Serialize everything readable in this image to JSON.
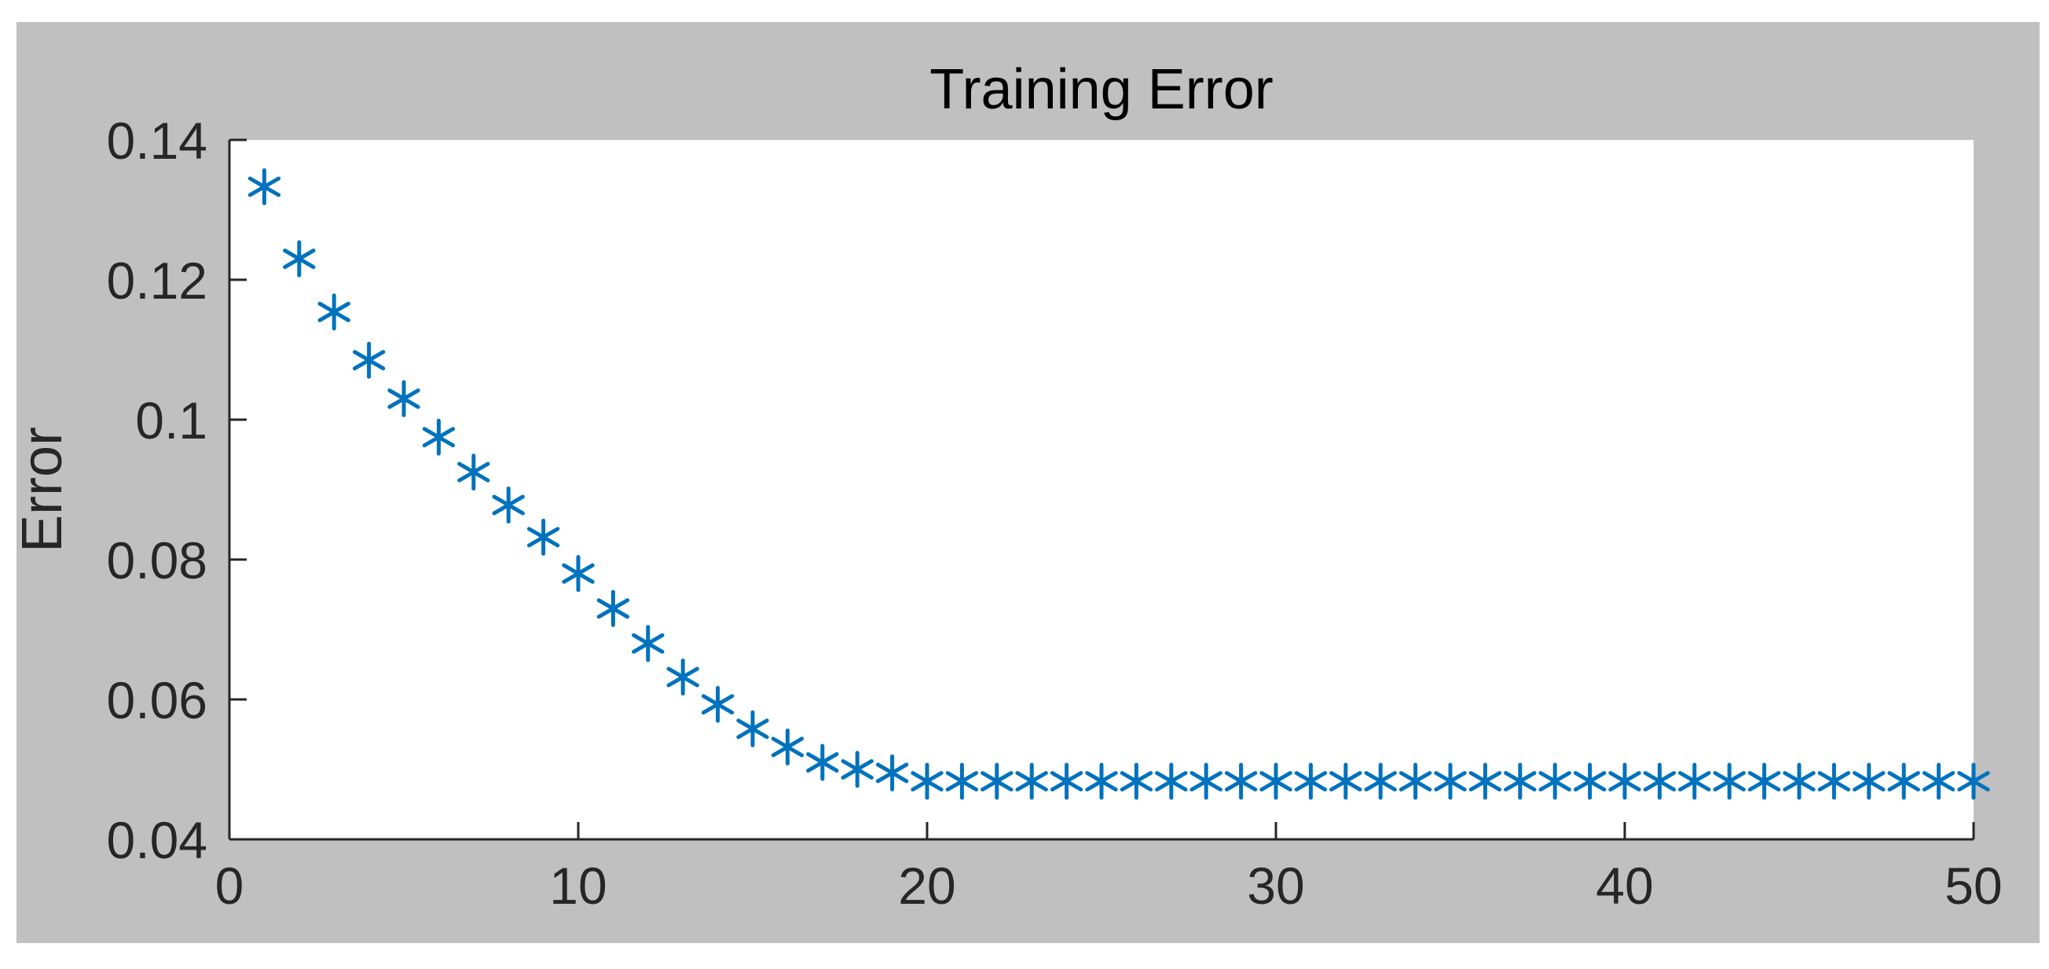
{
  "chart_data": {
    "type": "scatter",
    "title": "Training Error",
    "xlabel": "",
    "ylabel": "Error",
    "xlim": [
      0,
      50
    ],
    "ylim": [
      0.04,
      0.14
    ],
    "xticks": [
      0,
      10,
      20,
      30,
      40,
      50
    ],
    "xtick_labels": [
      "0",
      "10",
      "20",
      "30",
      "40",
      "50"
    ],
    "yticks": [
      0.04,
      0.06,
      0.08,
      0.1,
      0.12,
      0.14
    ],
    "ytick_labels": [
      "0.04",
      "0.06",
      "0.08",
      "0.1",
      "0.12",
      "0.14"
    ],
    "grid": false,
    "marker": "asterisk",
    "series": [
      {
        "color": "#0072BD",
        "x": [
          1,
          2,
          3,
          4,
          5,
          6,
          7,
          8,
          9,
          10,
          11,
          12,
          13,
          14,
          15,
          16,
          17,
          18,
          19,
          20,
          21,
          22,
          23,
          24,
          25,
          26,
          27,
          28,
          29,
          30,
          31,
          32,
          33,
          34,
          35,
          36,
          37,
          38,
          39,
          40,
          41,
          42,
          43,
          44,
          45,
          46,
          47,
          48,
          49,
          50
        ],
        "y": [
          0.1333,
          0.123,
          0.1154,
          0.1085,
          0.103,
          0.0975,
          0.0925,
          0.0878,
          0.0832,
          0.078,
          0.073,
          0.068,
          0.0632,
          0.0593,
          0.0558,
          0.0532,
          0.051,
          0.05,
          0.0495,
          0.0483,
          0.0483,
          0.0483,
          0.0483,
          0.0483,
          0.0483,
          0.0483,
          0.0483,
          0.0483,
          0.0483,
          0.0483,
          0.0483,
          0.0483,
          0.0483,
          0.0483,
          0.0483,
          0.0483,
          0.0483,
          0.0483,
          0.0483,
          0.0483,
          0.0483,
          0.0483,
          0.0483,
          0.0483,
          0.0483,
          0.0483,
          0.0483,
          0.0483,
          0.0483,
          0.0483
        ]
      }
    ]
  },
  "colors": {
    "figure_background": "#c0c0c0",
    "axes_background": "#ffffff",
    "axis_color": "#262626",
    "marker_color": "#0072BD"
  }
}
